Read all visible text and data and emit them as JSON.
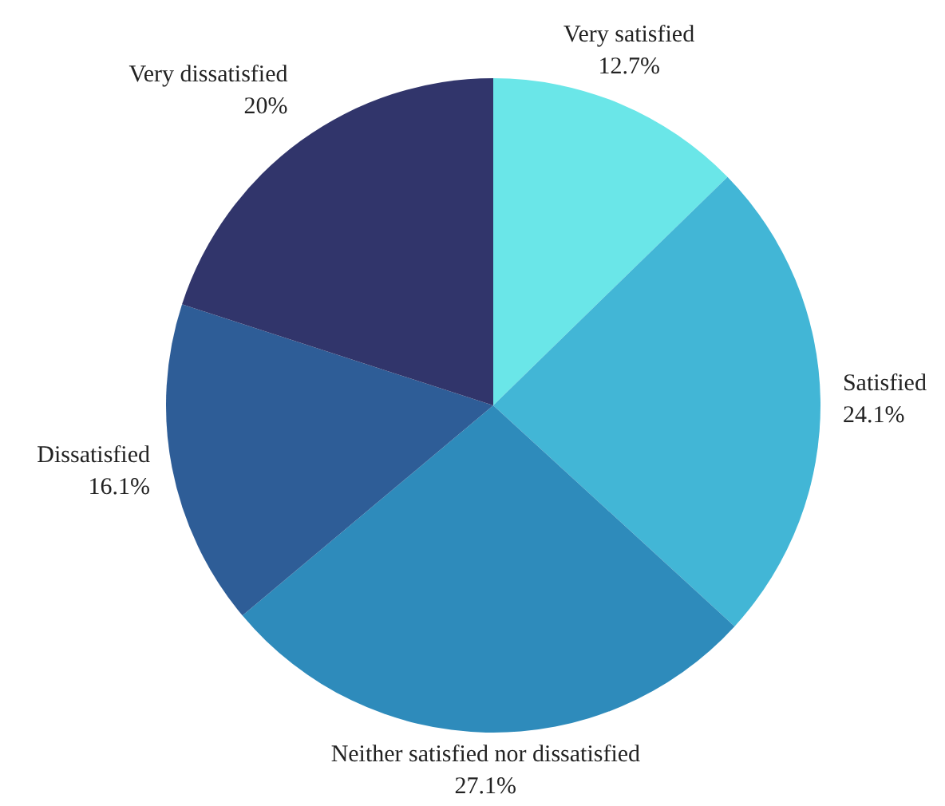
{
  "chart_data": {
    "type": "pie",
    "categories": [
      "Very satisfied",
      "Satisfied",
      "Neither satisfied nor dissatisfied",
      "Dissatisfied",
      "Very dissatisfied"
    ],
    "values": [
      12.7,
      24.1,
      27.1,
      16.1,
      20
    ],
    "value_labels": [
      "12.7%",
      "24.1%",
      "27.1%",
      "16.1%",
      "20%"
    ],
    "colors": [
      "#6ae6e8",
      "#42b6d6",
      "#2e8bbb",
      "#2e5d97",
      "#31356b"
    ]
  }
}
